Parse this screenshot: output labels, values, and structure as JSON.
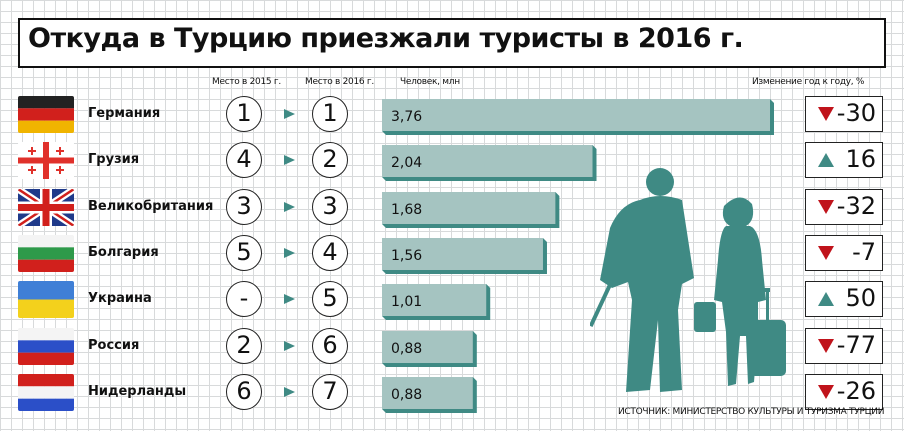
{
  "title": "Откуда в Турцию приезжали туристы в 2016 г.",
  "headers": {
    "rank_2015": "Место в 2015 г.",
    "rank_2016": "Место в 2016 г.",
    "people": "Человек, млн",
    "change": "Изменение год к году, %"
  },
  "source": "ИСТОЧНИК: МИНИСТЕРСТВО КУЛЬТУРЫ И ТУРИЗМА ТУРЦИИ",
  "colors": {
    "bar_fill": "#a5c4c1",
    "bar_shadow": "#3f8a84",
    "arrow": "#3f8a84",
    "down": "#c0131b",
    "up": "#3f8a84"
  },
  "rows": [
    {
      "country": "Германия",
      "rank_2015": "1",
      "rank_2016": "1",
      "label": "3,76",
      "change": "-30",
      "direction": "down",
      "flag": "germany"
    },
    {
      "country": "Грузия",
      "rank_2015": "4",
      "rank_2016": "2",
      "label": "2,04",
      "change": "16",
      "direction": "up",
      "flag": "georgia"
    },
    {
      "country": "Великобритания",
      "rank_2015": "3",
      "rank_2016": "3",
      "label": "1,68",
      "change": "-32",
      "direction": "down",
      "flag": "uk"
    },
    {
      "country": "Болгария",
      "rank_2015": "5",
      "rank_2016": "4",
      "label": "1,56",
      "change": "-7",
      "direction": "down",
      "flag": "bulgaria"
    },
    {
      "country": "Украина",
      "rank_2015": "-",
      "rank_2016": "5",
      "label": "1,01",
      "change": "50",
      "direction": "up",
      "flag": "ukraine"
    },
    {
      "country": "Россия",
      "rank_2015": "2",
      "rank_2016": "6",
      "label": "0,88",
      "change": "-77",
      "direction": "down",
      "flag": "russia"
    },
    {
      "country": "Нидерланды",
      "rank_2015": "6",
      "rank_2016": "7",
      "label": "0,88",
      "change": "-26",
      "direction": "down",
      "flag": "netherlands"
    }
  ],
  "chart_data": {
    "type": "bar",
    "orientation": "horizontal",
    "title": "Откуда в Турцию приезжали туристы в 2016 г.",
    "ylabel": "Человек, млн",
    "categories": [
      "Германия",
      "Грузия",
      "Великобритания",
      "Болгария",
      "Украина",
      "Россия",
      "Нидерланды"
    ],
    "values": [
      3.76,
      2.04,
      1.68,
      1.56,
      1.01,
      0.88,
      0.88
    ],
    "xlim": [
      0,
      3.76
    ],
    "grid": true
  }
}
